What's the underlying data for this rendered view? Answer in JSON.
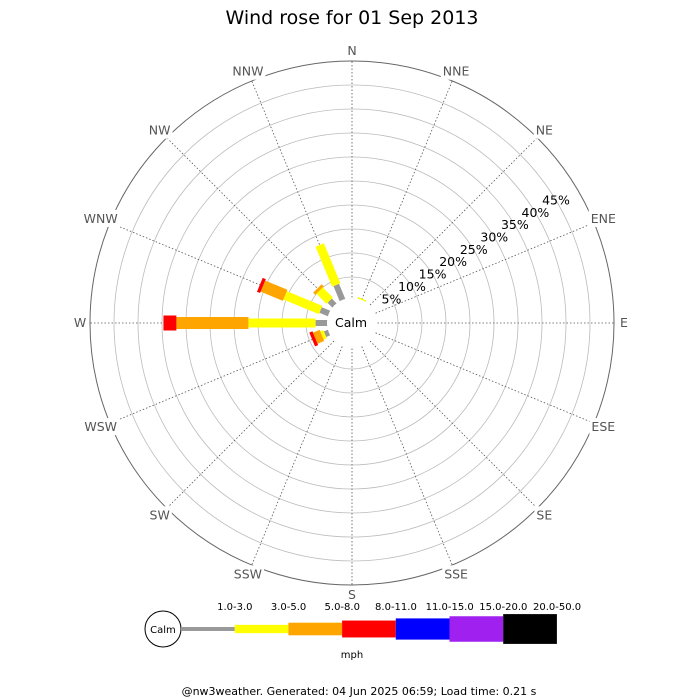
{
  "chart_data": {
    "type": "windrose",
    "title": "Wind rose for 01 Sep 2013",
    "directions": [
      "N",
      "NNE",
      "NE",
      "ENE",
      "E",
      "ESE",
      "SE",
      "SSE",
      "S",
      "SSW",
      "SW",
      "WSW",
      "W",
      "WNW",
      "NW",
      "NNW"
    ],
    "ring_labels": [
      "5%",
      "10%",
      "15%",
      "20%",
      "25%",
      "30%",
      "35%",
      "40%",
      "45%"
    ],
    "ring_values": [
      5,
      10,
      15,
      20,
      25,
      30,
      35,
      40,
      45
    ],
    "rmax": 50,
    "center_label": "Calm",
    "speed_bins": [
      {
        "label": "1.0-3.0",
        "color": "#999999"
      },
      {
        "label": "3.0-5.0",
        "color": "#ffff00"
      },
      {
        "label": "5.0-8.0",
        "color": "#ffa500"
      },
      {
        "label": "8.0-11.0",
        "color": "#ff0000"
      },
      {
        "label": "11.0-15.0",
        "color": "#0000ff"
      },
      {
        "label": "15.0-20.0",
        "color": "#a020f0"
      },
      {
        "label": "20.0-50.0",
        "color": "#000000"
      }
    ],
    "legend_unit": "mph",
    "series": [
      {
        "direction": "N",
        "segments": [
          0.6,
          0.0,
          0.0,
          0.0,
          0,
          0,
          0
        ]
      },
      {
        "direction": "NNE",
        "segments": [
          0.4,
          0.5,
          0.0,
          0.0,
          0,
          0,
          0
        ]
      },
      {
        "direction": "W",
        "segments": [
          3.0,
          14.0,
          15.0,
          2.7,
          0,
          0,
          0
        ]
      },
      {
        "direction": "WNW",
        "segments": [
          2.5,
          8.0,
          5.0,
          0.7,
          0,
          0,
          0
        ]
      },
      {
        "direction": "NW",
        "segments": [
          2.0,
          3.0,
          0.6,
          0.0,
          0,
          0,
          0
        ]
      },
      {
        "direction": "NNW",
        "segments": [
          4.0,
          9.0,
          0.0,
          0.0,
          0,
          0,
          0
        ]
      },
      {
        "direction": "WSW",
        "segments": [
          1.5,
          0.7,
          1.5,
          0.7,
          0,
          0,
          0
        ]
      },
      {
        "direction": "SW",
        "segments": [
          0.6,
          0.0,
          0.0,
          0.0,
          0,
          0,
          0
        ]
      }
    ]
  },
  "footer": "@nw3weather. Generated: 04 Jun 2025 06:59; Load time: 0.21 s"
}
